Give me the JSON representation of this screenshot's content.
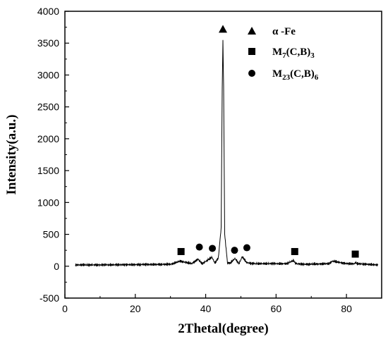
{
  "chart_data": {
    "type": "line",
    "xlabel": "2Thetal(degree)",
    "ylabel": "Intensity(a.u.)",
    "xlim": [
      0,
      90
    ],
    "ylim": [
      -500,
      4000
    ],
    "xticks": [
      "0",
      "20",
      "40",
      "60",
      "80"
    ],
    "yticks": [
      "-500",
      "0",
      "500",
      "1000",
      "1500",
      "2000",
      "2500",
      "3000",
      "3500",
      "4000"
    ],
    "grid": false,
    "legend_position": "top-right",
    "series": [
      {
        "x": [
          3,
          10,
          20,
          30,
          32.8,
          36,
          37.8,
          39,
          41.8,
          42.6,
          43.6,
          44.4,
          44.7,
          44.9,
          45.1,
          45.4,
          46.2,
          47,
          48.3,
          49.5,
          50.4,
          51.6,
          53,
          58,
          63,
          65,
          65.4,
          65.8,
          68,
          75,
          76,
          80,
          82.3,
          82.6,
          83,
          86,
          89
        ],
        "values": [
          20,
          20,
          25,
          30,
          80,
          40,
          110,
          40,
          140,
          50,
          130,
          600,
          2800,
          3530,
          2800,
          500,
          50,
          50,
          120,
          40,
          150,
          60,
          40,
          40,
          40,
          90,
          50,
          40,
          30,
          40,
          80,
          40,
          40,
          60,
          40,
          30,
          20
        ]
      }
    ],
    "markers": [
      {
        "phase": "alpha-Fe",
        "shape": "triangle",
        "x": 44.9,
        "y": 3720
      },
      {
        "phase": "M7(C,B)3",
        "shape": "square",
        "x": 33,
        "y": 230
      },
      {
        "phase": "M7(C,B)3",
        "shape": "square",
        "x": 65.3,
        "y": 230
      },
      {
        "phase": "M7(C,B)3",
        "shape": "square",
        "x": 82.5,
        "y": 190
      },
      {
        "phase": "M23(C,B)6",
        "shape": "circle",
        "x": 38.2,
        "y": 300
      },
      {
        "phase": "M23(C,B)6",
        "shape": "circle",
        "x": 41.9,
        "y": 280
      },
      {
        "phase": "M23(C,B)6",
        "shape": "circle",
        "x": 48.2,
        "y": 250
      },
      {
        "phase": "M23(C,B)6",
        "shape": "circle",
        "x": 51.7,
        "y": 290
      }
    ],
    "legend": [
      {
        "shape": "triangle",
        "text": "α -Fe"
      },
      {
        "shape": "square",
        "text": "M",
        "sub1": "7",
        "mid": "(C,B)",
        "sub2": "3"
      },
      {
        "shape": "circle",
        "text": "M",
        "sub1": "23",
        "mid": "(C,B)",
        "sub2": "6"
      }
    ]
  }
}
